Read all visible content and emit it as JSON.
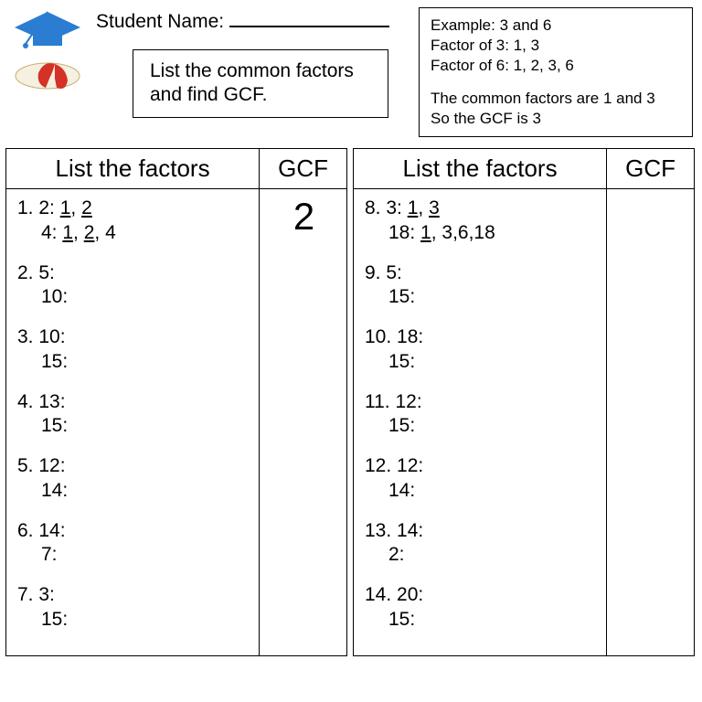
{
  "header": {
    "student_label": "Student Name:",
    "instruction": "List the common factors and find GCF."
  },
  "example": {
    "line1": "Example: 3 and 6",
    "line2": "Factor of 3: 1, 3",
    "line3": "Factor of 6:  1, 2, 3, 6",
    "line4": "The common factors are 1 and 3",
    "line5": "So the GCF is 3"
  },
  "columns": {
    "factors_header": "List the factors",
    "gcf_header": "GCF"
  },
  "left": {
    "gcf_answer": "2",
    "problems": [
      {
        "num": "1.",
        "a": "2:",
        "a_ans": [
          {
            "t": "1",
            "u": true
          },
          {
            "t": ", ",
            "u": false
          },
          {
            "t": "2",
            "u": true
          }
        ],
        "b": "4:",
        "b_ans": [
          {
            "t": " ",
            "u": false
          },
          {
            "t": "1",
            "u": true
          },
          {
            "t": ", ",
            "u": false
          },
          {
            "t": "2",
            "u": true
          },
          {
            "t": ", 4",
            "u": false
          }
        ]
      },
      {
        "num": "2.",
        "a": "5:",
        "a_ans": [],
        "b": "10:",
        "b_ans": []
      },
      {
        "num": "3.",
        "a": "10:",
        "a_ans": [],
        "b": "15:",
        "b_ans": []
      },
      {
        "num": "4.",
        "a": "13:",
        "a_ans": [],
        "b": "15:",
        "b_ans": []
      },
      {
        "num": "5.",
        "a": "12:",
        "a_ans": [],
        "b": "14:",
        "b_ans": []
      },
      {
        "num": "6.",
        "a": "14:",
        "a_ans": [],
        "b": " 7:",
        "b_ans": []
      },
      {
        "num": "7.",
        "a": "3:",
        "a_ans": [],
        "b": "15:",
        "b_ans": []
      }
    ]
  },
  "right": {
    "gcf_answer": "",
    "problems": [
      {
        "num": "8.",
        "a": " 3:",
        "a_ans": [
          {
            "t": "1",
            "u": true
          },
          {
            "t": ", ",
            "u": false
          },
          {
            "t": "3",
            "u": true
          }
        ],
        "b": "18:",
        "b_ans": [
          {
            "t": " ",
            "u": false
          },
          {
            "t": "1",
            "u": true
          },
          {
            "t": ", 3,6,18",
            "u": false
          }
        ]
      },
      {
        "num": "9.",
        "a": " 5:",
        "a_ans": [],
        "b": "15:",
        "b_ans": []
      },
      {
        "num": "10.",
        "a": "18:",
        "a_ans": [],
        "b": "15:",
        "b_ans": []
      },
      {
        "num": "11.",
        "a": " 12:",
        "a_ans": [],
        "b": " 15:",
        "b_ans": []
      },
      {
        "num": "12.",
        "a": " 12:",
        "a_ans": [],
        "b": " 14:",
        "b_ans": []
      },
      {
        "num": "13.",
        "a": " 14:",
        "a_ans": [],
        "b": "  2:",
        "b_ans": []
      },
      {
        "num": "14.",
        "a": " 20:",
        "a_ans": [],
        "b": " 15:",
        "b_ans": []
      }
    ]
  },
  "colors": {
    "cap": "#2a7dd1",
    "ribbon": "#d43226",
    "scroll": "#f5f0e0",
    "text": "#000000",
    "background": "#ffffff"
  }
}
